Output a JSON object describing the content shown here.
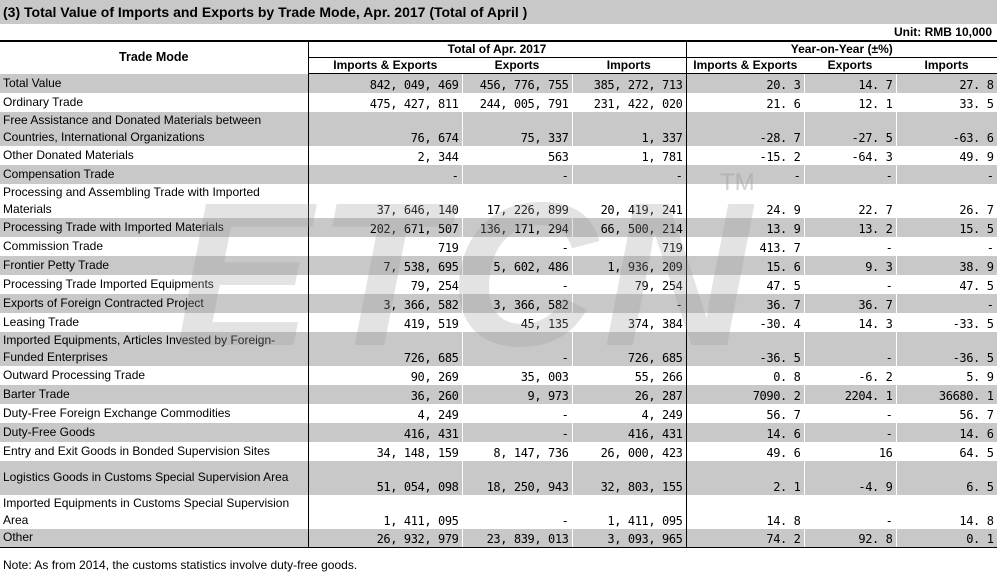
{
  "title": "(3) Total Value of Imports and Exports by Trade Mode, Apr. 2017 (Total of April )",
  "unit": "Unit: RMB 10,000",
  "headers": {
    "trade_mode": "Trade Mode",
    "group_total": "Total of Apr. 2017",
    "group_yoy": "Year-on-Year (±%)",
    "cols": [
      "Imports & Exports",
      "Exports",
      "Imports",
      "Imports & Exports",
      "Exports",
      "Imports"
    ]
  },
  "rows": [
    {
      "name": "Total Value",
      "ie": "842, 049, 469",
      "ex": "456, 776, 755",
      "im": "385, 272, 713",
      "yie": "20. 3",
      "yex": "14. 7",
      "yim": "27. 8"
    },
    {
      "name": "Ordinary Trade",
      "ie": "475, 427, 811",
      "ex": "244, 005, 791",
      "im": "231, 422, 020",
      "yie": "21. 6",
      "yex": "12. 1",
      "yim": "33. 5"
    },
    {
      "name": "Free Assistance and Donated Materials between Countries, International Organizations",
      "ie": "76, 674",
      "ex": "75, 337",
      "im": "1, 337",
      "yie": "-28. 7",
      "yex": "-27. 5",
      "yim": "-63. 6"
    },
    {
      "name": "Other Donated Materials",
      "ie": "2, 344",
      "ex": "563",
      "im": "1, 781",
      "yie": "-15. 2",
      "yex": "-64. 3",
      "yim": "49. 9"
    },
    {
      "name": "Compensation Trade",
      "ie": "-",
      "ex": "-",
      "im": "-",
      "yie": "-",
      "yex": "-",
      "yim": "-"
    },
    {
      "name": "Processing and Assembling Trade with Imported Materials",
      "ie": "37, 646, 140",
      "ex": "17, 226, 899",
      "im": "20, 419, 241",
      "yie": "24. 9",
      "yex": "22. 7",
      "yim": "26. 7"
    },
    {
      "name": "Processing Trade with Imported Materials",
      "ie": "202, 671, 507",
      "ex": "136, 171, 294",
      "im": "66, 500, 214",
      "yie": "13. 9",
      "yex": "13. 2",
      "yim": "15. 5"
    },
    {
      "name": "Commission Trade",
      "ie": "719",
      "ex": "-",
      "im": "719",
      "yie": "413. 7",
      "yex": "-",
      "yim": "-"
    },
    {
      "name": "Frontier Petty Trade",
      "ie": "7, 538, 695",
      "ex": "5, 602, 486",
      "im": "1, 936, 209",
      "yie": "15. 6",
      "yex": "9. 3",
      "yim": "38. 9"
    },
    {
      "name": "Processing Trade Imported Equipments",
      "ie": "79, 254",
      "ex": "-",
      "im": "79, 254",
      "yie": "47. 5",
      "yex": "-",
      "yim": "47. 5"
    },
    {
      "name": "Exports of Foreign Contracted Project",
      "ie": "3, 366, 582",
      "ex": "3, 366, 582",
      "im": "-",
      "yie": "36. 7",
      "yex": "36. 7",
      "yim": "-"
    },
    {
      "name": "Leasing Trade",
      "ie": "419, 519",
      "ex": "45, 135",
      "im": "374, 384",
      "yie": "-30. 4",
      "yex": "14. 3",
      "yim": "-33. 5"
    },
    {
      "name": "Imported Equipments, Articles Invested by Foreign-Funded Enterprises",
      "ie": "726, 685",
      "ex": "-",
      "im": "726, 685",
      "yie": "-36. 5",
      "yex": "-",
      "yim": "-36. 5"
    },
    {
      "name": "Outward Processing Trade",
      "ie": "90, 269",
      "ex": "35, 003",
      "im": "55, 266",
      "yie": "0. 8",
      "yex": "-6. 2",
      "yim": "5. 9"
    },
    {
      "name": "Barter Trade",
      "ie": "36, 260",
      "ex": "9, 973",
      "im": "26, 287",
      "yie": "7090. 2",
      "yex": "2204. 1",
      "yim": "36680. 1"
    },
    {
      "name": "Duty-Free Foreign Exchange Commodities",
      "ie": "4, 249",
      "ex": "-",
      "im": "4, 249",
      "yie": "56. 7",
      "yex": "-",
      "yim": "56. 7"
    },
    {
      "name": "Duty-Free Goods",
      "ie": "416, 431",
      "ex": "-",
      "im": "416, 431",
      "yie": "14. 6",
      "yex": "-",
      "yim": "14. 6"
    },
    {
      "name": "Entry and Exit Goods in Bonded Supervision Sites",
      "ie": "34, 148, 159",
      "ex": "8, 147, 736",
      "im": "26, 000, 423",
      "yie": "49. 6",
      "yex": "16",
      "yim": "64. 5"
    },
    {
      "name": "Logistics Goods in Customs Special Supervision Area",
      "ie": "51, 054, 098",
      "ex": "18, 250, 943",
      "im": "32, 803, 155",
      "yie": "2. 1",
      "yex": "-4. 9",
      "yim": "6. 5"
    },
    {
      "name": "Imported Equipments in Customs Special Supervision Area",
      "ie": "1, 411, 095",
      "ex": "-",
      "im": "1, 411, 095",
      "yie": "14. 8",
      "yex": "-",
      "yim": "14. 8"
    },
    {
      "name": "Other",
      "ie": "26, 932, 979",
      "ex": "23, 839, 013",
      "im": "3, 093, 965",
      "yie": "74. 2",
      "yex": "92. 8",
      "yim": "0. 1"
    }
  ],
  "note": "Note: As from 2014, the customs statistics involve duty-free goods.",
  "watermark": {
    "text": "ETCN",
    "mark": "TM"
  }
}
